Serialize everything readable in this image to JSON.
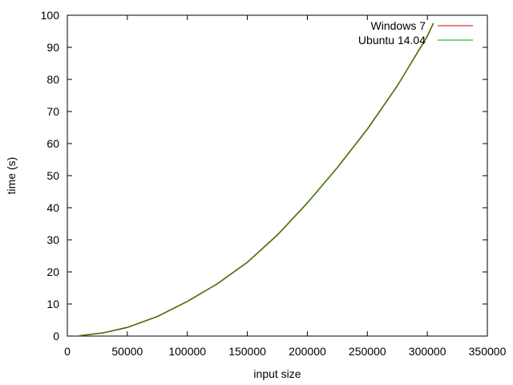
{
  "chart_data": {
    "type": "line",
    "title": "",
    "xlabel": "input size",
    "ylabel": "time (s)",
    "xlim": [
      0,
      350000
    ],
    "ylim": [
      0,
      100
    ],
    "x_ticks": [
      0,
      50000,
      100000,
      150000,
      200000,
      250000,
      300000,
      350000
    ],
    "y_ticks": [
      0,
      10,
      20,
      30,
      40,
      50,
      60,
      70,
      80,
      90,
      100
    ],
    "grid": false,
    "legend_position": "top-right",
    "series": [
      {
        "name": "Windows 7",
        "color": "#cc0000",
        "x": [
          10000,
          30000,
          50000,
          75000,
          100000,
          125000,
          150000,
          175000,
          200000,
          225000,
          250000,
          275000,
          300000,
          305000
        ],
        "y": [
          0.1,
          1.0,
          2.7,
          6.1,
          10.8,
          16.3,
          23.0,
          31.5,
          41.5,
          52.5,
          64.5,
          78.0,
          93.5,
          97.5
        ]
      },
      {
        "name": "Ubuntu 14.04",
        "color": "#00aa00",
        "x": [
          10000,
          30000,
          50000,
          75000,
          100000,
          125000,
          150000,
          175000,
          200000,
          225000,
          250000,
          275000,
          300000,
          305000
        ],
        "y": [
          0.1,
          1.0,
          2.7,
          6.1,
          10.8,
          16.3,
          23.0,
          31.5,
          41.5,
          52.5,
          64.5,
          78.0,
          93.5,
          97.5
        ]
      }
    ]
  }
}
